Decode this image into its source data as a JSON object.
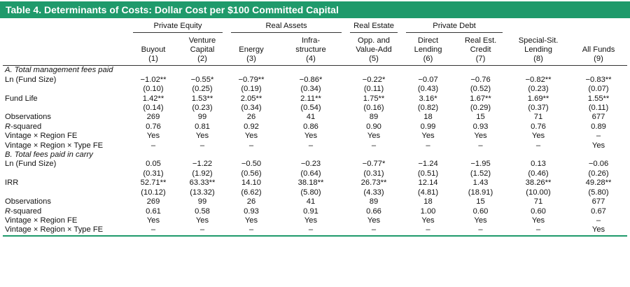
{
  "title": "Table 4.  Determinants of Costs: Dollar Cost per $100 Committed Capital",
  "groups": [
    {
      "label": "",
      "span": 1
    },
    {
      "label": "Private Equity",
      "span": 2
    },
    {
      "label": "Real Assets",
      "span": 2
    },
    {
      "label": "Real Estate",
      "span": 1
    },
    {
      "label": "Private Debt",
      "span": 2
    },
    {
      "label": "",
      "span": 2
    }
  ],
  "columns": [
    {
      "name": "Buyout",
      "num": "(1)"
    },
    {
      "name": "Venture Capital",
      "num": "(2)"
    },
    {
      "name": "Energy",
      "num": "(3)"
    },
    {
      "name": "Infra-structure",
      "num": "(4)"
    },
    {
      "name": "Opp. and Value-Add",
      "num": "(5)"
    },
    {
      "name": "Direct Lending",
      "num": "(6)"
    },
    {
      "name": "Real Est. Credit",
      "num": "(7)"
    },
    {
      "name": "Special-Sit. Lending",
      "num": "(8)"
    },
    {
      "name": "All Funds",
      "num": "(9)"
    }
  ],
  "panels": [
    {
      "title": "A. Total management fees paid",
      "rows": [
        {
          "label": "Ln (Fund Size)",
          "cells": [
            "−1.02**",
            "−0.55*",
            "−0.79**",
            "−0.86*",
            "−0.22*",
            "−0.07",
            "−0.76",
            "−0.82**",
            "−0.83**"
          ]
        },
        {
          "label": "",
          "cells": [
            "(0.10)",
            "(0.25)",
            "(0.19)",
            "(0.34)",
            "(0.11)",
            "(0.43)",
            "(0.52)",
            "(0.23)",
            "(0.07)"
          ]
        },
        {
          "label": "Fund Life",
          "cells": [
            "1.42**",
            "1.53**",
            "2.05**",
            "2.11**",
            "1.75**",
            "3.16*",
            "1.67**",
            "1.69**",
            "1.55**"
          ]
        },
        {
          "label": "",
          "cells": [
            "(0.14)",
            "(0.23)",
            "(0.34)",
            "(0.54)",
            "(0.16)",
            "(0.82)",
            "(0.29)",
            "(0.37)",
            "(0.11)"
          ]
        },
        {
          "label": "Observations",
          "cells": [
            "269",
            "99",
            "26",
            "41",
            "89",
            "18",
            "15",
            "71",
            "677"
          ]
        },
        {
          "label": "R-squared",
          "cells": [
            "0.76",
            "0.81",
            "0.92",
            "0.86",
            "0.90",
            "0.99",
            "0.93",
            "0.76",
            "0.89"
          ]
        },
        {
          "label": "Vintage × Region FE",
          "cells": [
            "Yes",
            "Yes",
            "Yes",
            "Yes",
            "Yes",
            "Yes",
            "Yes",
            "Yes",
            "–"
          ]
        },
        {
          "label": "Vintage × Region × Type FE",
          "cells": [
            "–",
            "–",
            "–",
            "–",
            "–",
            "–",
            "–",
            "–",
            "Yes"
          ]
        }
      ]
    },
    {
      "title": "B. Total fees paid in carry",
      "rows": [
        {
          "label": "Ln (Fund Size)",
          "cells": [
            "0.05",
            "−1.22",
            "−0.50",
            "−0.23",
            "−0.77*",
            "−1.24",
            "−1.95",
            "0.13",
            "−0.06"
          ]
        },
        {
          "label": "",
          "cells": [
            "(0.31)",
            "(1.92)",
            "(0.56)",
            "(0.64)",
            "(0.31)",
            "(0.51)",
            "(1.52)",
            "(0.46)",
            "(0.26)"
          ]
        },
        {
          "label": "IRR",
          "cells": [
            "52.71**",
            "63.33**",
            "14.10",
            "38.18**",
            "26.73**",
            "12.14",
            "1.43",
            "38.26**",
            "49.28**"
          ]
        },
        {
          "label": "",
          "cells": [
            "(10.12)",
            "(13.32)",
            "(6.62)",
            "(5.80)",
            "(4.33)",
            "(4.81)",
            "(18.91)",
            "(10.00)",
            "(5.80)"
          ]
        },
        {
          "label": "Observations",
          "cells": [
            "269",
            "99",
            "26",
            "41",
            "89",
            "18",
            "15",
            "71",
            "677"
          ]
        },
        {
          "label": "R-squared",
          "cells": [
            "0.61",
            "0.58",
            "0.93",
            "0.91",
            "0.66",
            "1.00",
            "0.60",
            "0.60",
            "0.67"
          ]
        },
        {
          "label": "Vintage × Region FE",
          "cells": [
            "Yes",
            "Yes",
            "Yes",
            "Yes",
            "Yes",
            "Yes",
            "Yes",
            "Yes",
            "–"
          ]
        },
        {
          "label": "Vintage × Region × Type FE",
          "cells": [
            "–",
            "–",
            "–",
            "–",
            "–",
            "–",
            "–",
            "–",
            "Yes"
          ]
        }
      ]
    }
  ],
  "colors": {
    "accent": "#1f9a6b",
    "title_text": "#ffffff"
  }
}
